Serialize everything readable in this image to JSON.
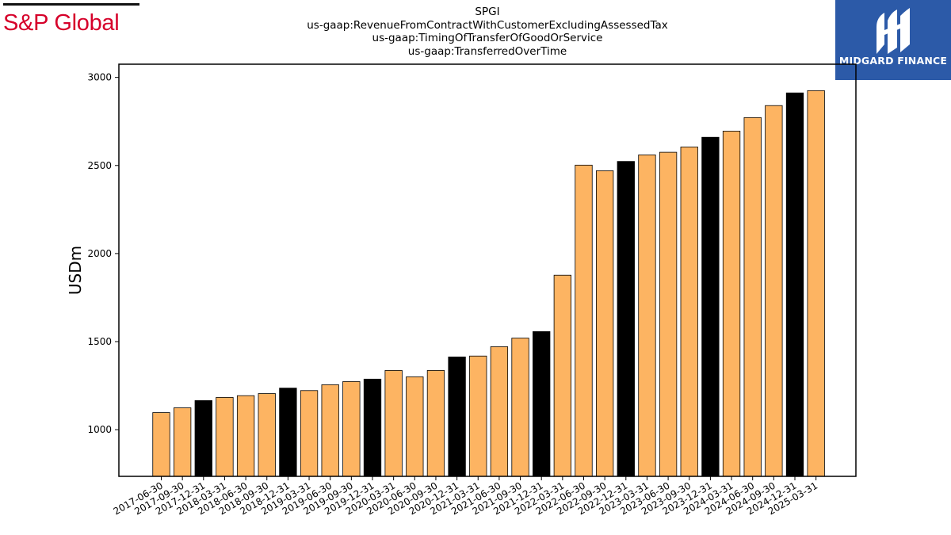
{
  "header": {
    "left_logo_text": "S&P Global",
    "right_logo_text": "MIDGARD FINANCE",
    "title_lines": [
      "SPGI",
      "us-gaap:RevenueFromContractWithCustomerExcludingAssessedTax",
      "us-gaap:TimingOfTransferOfGoodOrService",
      "us-gaap:TransferredOverTime"
    ]
  },
  "colors": {
    "bar_default": "#fdb462",
    "bar_highlight": "#000000",
    "bar_edge": "#000000",
    "sp_red": "#d6002a",
    "midgard_blue": "#2c5aa8"
  },
  "icons": {
    "midgard_logo": "midgard-mark-icon"
  },
  "chart_data": {
    "type": "bar",
    "title": "SPGI us-gaap:RevenueFromContractWithCustomerExcludingAssessedTax us-gaap:TimingOfTransferOfGoodOrService us-gaap:TransferredOverTime",
    "xlabel": "",
    "ylabel": "USDm",
    "ylim": [
      735,
      3075
    ],
    "yticks": [
      1000,
      1500,
      2000,
      2500,
      3000
    ],
    "grid": false,
    "legend": "none",
    "categories": [
      "2017-06-30",
      "2017-09-30",
      "2017-12-31",
      "2018-03-31",
      "2018-06-30",
      "2018-09-30",
      "2018-12-31",
      "2019-03-31",
      "2019-06-30",
      "2019-09-30",
      "2019-12-31",
      "2020-03-31",
      "2020-06-30",
      "2020-09-30",
      "2020-12-31",
      "2021-03-31",
      "2021-06-30",
      "2021-09-30",
      "2021-12-31",
      "2022-03-31",
      "2022-06-30",
      "2022-09-30",
      "2022-12-31",
      "2023-03-31",
      "2023-06-30",
      "2023-09-30",
      "2023-12-31",
      "2024-03-31",
      "2024-06-30",
      "2024-09-30",
      "2024-12-31",
      "2025-03-31"
    ],
    "values": [
      1097,
      1124,
      1165,
      1183,
      1193,
      1205,
      1236,
      1222,
      1255,
      1273,
      1287,
      1336,
      1300,
      1336,
      1413,
      1418,
      1471,
      1520,
      1557,
      1877,
      2502,
      2470,
      2523,
      2560,
      2575,
      2605,
      2660,
      2695,
      2772,
      2840,
      2912,
      2925
    ],
    "highlight_year_end": [
      "2017-12-31",
      "2018-12-31",
      "2019-12-31",
      "2020-12-31",
      "2021-12-31",
      "2022-12-31",
      "2023-12-31",
      "2024-12-31"
    ]
  }
}
